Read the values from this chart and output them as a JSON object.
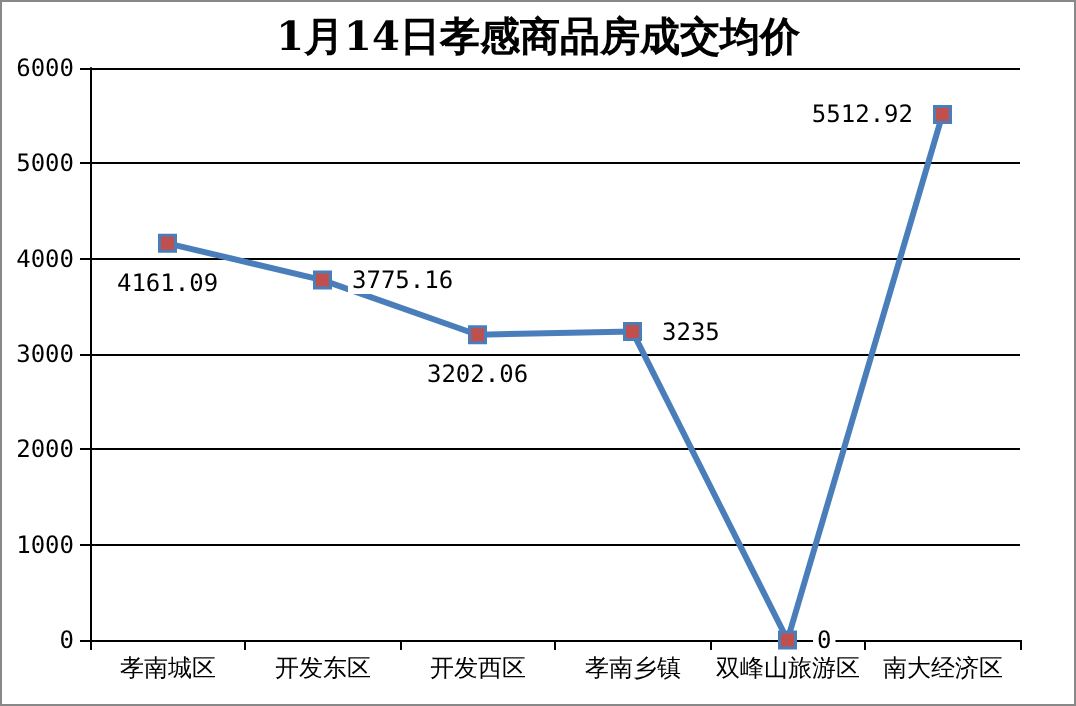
{
  "chart_data": {
    "type": "line",
    "title": "1月14日孝感商品房成交均价",
    "categories": [
      "孝南城区",
      "开发东区",
      "开发西区",
      "孝南乡镇",
      "双峰山旅游区",
      "南大经济区"
    ],
    "values": [
      4161.09,
      3775.16,
      3202.06,
      3235,
      0,
      5512.92
    ],
    "value_labels": [
      "4161.09",
      "3775.16",
      "3202.06",
      "3235",
      "0",
      "5512.92"
    ],
    "color": "#4a7ebb",
    "ylim": [
      0,
      6000
    ],
    "yticks": [
      0,
      1000,
      2000,
      3000,
      4000,
      5000,
      6000
    ],
    "grid": "y",
    "marker": "square",
    "line_style": "solid"
  }
}
